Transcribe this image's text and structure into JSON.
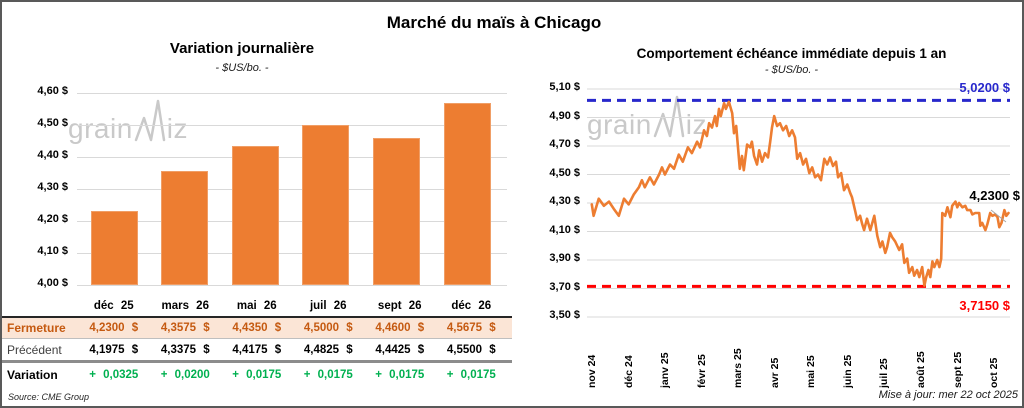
{
  "page": {
    "title": "Marché du maïs à Chicago",
    "source": "Source: CME Group",
    "updated": "Mise à jour: mer 22 oct 2025",
    "watermark": {
      "name": "grainwiz",
      "pre": "grain",
      "post": "iz"
    }
  },
  "colors": {
    "orange": "#ED7D31",
    "peach_row_bg": "#FBE5D6",
    "close_text": "#C55A11",
    "variation_green": "#00B050",
    "ref_blue": "#2828CC",
    "ref_red": "#FF0000",
    "gridline": "#D9D9D9",
    "watermark_gray": "#C9C9C9"
  },
  "chart_data": [
    {
      "type": "bar",
      "title": "Variation journalière",
      "subtitle": "- $US/bo. -",
      "categories": [
        "déc 25",
        "mars 26",
        "mai 26",
        "juil 26",
        "sept 26",
        "déc 26"
      ],
      "values": [
        4.23,
        4.3575,
        4.435,
        4.5,
        4.46,
        4.5675
      ],
      "ylim": [
        4.0,
        4.6
      ],
      "yticks": [
        "4,00 $",
        "4,10 $",
        "4,20 $",
        "4,30 $",
        "4,40 $",
        "4,50 $",
        "4,60 $"
      ],
      "grid": true,
      "legend": "none",
      "bar_color": "#ED7D31"
    },
    {
      "type": "line",
      "title": "Comportement échéance immédiate depuis 1 an",
      "subtitle": "- $US/bo. -",
      "x_categories": [
        "nov 24",
        "déc 24",
        "janv 25",
        "févr 25",
        "mars 25",
        "avr 25",
        "mai 25",
        "juin 25",
        "juil 25",
        "août 25",
        "sept 25",
        "oct 25"
      ],
      "ylim": [
        3.5,
        5.1
      ],
      "yticks": [
        "3,50 $",
        "3,70 $",
        "3,90 $",
        "4,10 $",
        "4,30 $",
        "4,50 $",
        "4,70 $",
        "4,90 $",
        "5,10 $"
      ],
      "grid": true,
      "legend": "none",
      "line_color": "#ED7D31",
      "ref_lines": [
        {
          "value": 5.02,
          "label": "5,0200 $",
          "color": "#2828CC",
          "style": "dashed"
        },
        {
          "value": 3.715,
          "label": "3,7150 $",
          "color": "#FF0000",
          "style": "dashed"
        }
      ],
      "last_value_label": "4,2300 $",
      "points": [
        [
          0.0,
          4.29
        ],
        [
          0.05,
          4.21
        ],
        [
          0.19,
          4.33
        ],
        [
          0.33,
          4.28
        ],
        [
          0.47,
          4.31
        ],
        [
          0.6,
          4.26
        ],
        [
          0.74,
          4.21
        ],
        [
          0.88,
          4.33
        ],
        [
          1.01,
          4.29
        ],
        [
          1.15,
          4.36
        ],
        [
          1.29,
          4.41
        ],
        [
          1.37,
          4.46
        ],
        [
          1.45,
          4.41
        ],
        [
          1.59,
          4.48
        ],
        [
          1.7,
          4.43
        ],
        [
          1.84,
          4.5
        ],
        [
          1.92,
          4.55
        ],
        [
          2.0,
          4.5
        ],
        [
          2.14,
          4.57
        ],
        [
          2.25,
          4.54
        ],
        [
          2.38,
          4.64
        ],
        [
          2.49,
          4.59
        ],
        [
          2.63,
          4.69
        ],
        [
          2.74,
          4.65
        ],
        [
          2.88,
          4.73
        ],
        [
          2.96,
          4.69
        ],
        [
          3.07,
          4.81
        ],
        [
          3.15,
          4.77
        ],
        [
          3.21,
          4.86
        ],
        [
          3.29,
          4.83
        ],
        [
          3.37,
          4.91
        ],
        [
          3.42,
          4.84
        ],
        [
          3.48,
          4.96
        ],
        [
          3.53,
          4.91
        ],
        [
          3.62,
          5.0
        ],
        [
          3.67,
          4.96
        ],
        [
          3.75,
          5.01
        ],
        [
          3.84,
          4.93
        ],
        [
          3.89,
          4.79
        ],
        [
          3.95,
          4.84
        ],
        [
          4.0,
          4.69
        ],
        [
          4.05,
          4.54
        ],
        [
          4.11,
          4.63
        ],
        [
          4.16,
          4.53
        ],
        [
          4.25,
          4.71
        ],
        [
          4.33,
          4.69
        ],
        [
          4.38,
          4.73
        ],
        [
          4.44,
          4.63
        ],
        [
          4.52,
          4.57
        ],
        [
          4.58,
          4.67
        ],
        [
          4.66,
          4.59
        ],
        [
          4.74,
          4.65
        ],
        [
          4.82,
          4.62
        ],
        [
          4.88,
          4.73
        ],
        [
          4.93,
          4.83
        ],
        [
          4.99,
          4.91
        ],
        [
          5.07,
          4.84
        ],
        [
          5.15,
          4.86
        ],
        [
          5.23,
          4.81
        ],
        [
          5.32,
          4.84
        ],
        [
          5.4,
          4.77
        ],
        [
          5.48,
          4.81
        ],
        [
          5.56,
          4.76
        ],
        [
          5.62,
          4.61
        ],
        [
          5.7,
          4.65
        ],
        [
          5.78,
          4.57
        ],
        [
          5.86,
          4.61
        ],
        [
          5.95,
          4.51
        ],
        [
          6.03,
          4.55
        ],
        [
          6.11,
          4.48
        ],
        [
          6.19,
          4.5
        ],
        [
          6.27,
          4.46
        ],
        [
          6.36,
          4.61
        ],
        [
          6.44,
          4.57
        ],
        [
          6.52,
          4.62
        ],
        [
          6.6,
          4.56
        ],
        [
          6.68,
          4.59
        ],
        [
          6.74,
          4.48
        ],
        [
          6.82,
          4.51
        ],
        [
          6.9,
          4.39
        ],
        [
          6.99,
          4.43
        ],
        [
          7.07,
          4.37
        ],
        [
          7.12,
          4.34
        ],
        [
          7.21,
          4.24
        ],
        [
          7.26,
          4.18
        ],
        [
          7.34,
          4.21
        ],
        [
          7.4,
          4.15
        ],
        [
          7.45,
          4.11
        ],
        [
          7.53,
          4.19
        ],
        [
          7.62,
          4.11
        ],
        [
          7.73,
          4.21
        ],
        [
          7.81,
          4.07
        ],
        [
          7.89,
          3.99
        ],
        [
          7.95,
          4.03
        ],
        [
          8.03,
          3.95
        ],
        [
          8.08,
          3.99
        ],
        [
          8.16,
          4.09
        ],
        [
          8.22,
          4.06
        ],
        [
          8.3,
          4.03
        ],
        [
          8.41,
          3.97
        ],
        [
          8.49,
          4.01
        ],
        [
          8.55,
          3.88
        ],
        [
          8.63,
          3.91
        ],
        [
          8.68,
          3.81
        ],
        [
          8.77,
          3.85
        ],
        [
          8.82,
          3.79
        ],
        [
          8.9,
          3.83
        ],
        [
          8.96,
          3.78
        ],
        [
          9.04,
          3.85
        ],
        [
          9.1,
          3.72
        ],
        [
          9.15,
          3.78
        ],
        [
          9.21,
          3.83
        ],
        [
          9.26,
          3.78
        ],
        [
          9.32,
          3.89
        ],
        [
          9.37,
          3.85
        ],
        [
          9.45,
          3.9
        ],
        [
          9.51,
          3.85
        ],
        [
          9.56,
          3.91
        ],
        [
          9.59,
          4.23
        ],
        [
          9.67,
          4.21
        ],
        [
          9.73,
          4.27
        ],
        [
          9.81,
          4.2
        ],
        [
          9.86,
          4.28
        ],
        [
          9.95,
          4.31
        ],
        [
          10.0,
          4.27
        ],
        [
          10.05,
          4.3
        ],
        [
          10.14,
          4.27
        ],
        [
          10.22,
          4.28
        ],
        [
          10.27,
          4.25
        ],
        [
          10.36,
          4.25
        ],
        [
          10.41,
          4.22
        ],
        [
          10.49,
          4.23
        ],
        [
          10.6,
          4.23
        ],
        [
          10.63,
          4.14
        ],
        [
          10.68,
          4.16
        ],
        [
          10.77,
          4.11
        ],
        [
          10.82,
          4.15
        ],
        [
          10.9,
          4.23
        ],
        [
          10.96,
          4.21
        ],
        [
          11.04,
          4.22
        ],
        [
          11.1,
          4.2
        ],
        [
          11.15,
          4.13
        ],
        [
          11.21,
          4.16
        ],
        [
          11.29,
          4.25
        ],
        [
          11.34,
          4.21
        ],
        [
          11.4,
          4.23
        ]
      ]
    }
  ],
  "table": {
    "columns": [
      "",
      "déc 25",
      "mars 26",
      "mai 26",
      "juil 26",
      "sept 26",
      "déc 26"
    ],
    "rows": [
      {
        "label": "Fermeture",
        "style": "close",
        "values": [
          "4,2300 $",
          "4,3575 $",
          "4,4350 $",
          "4,5000 $",
          "4,4600 $",
          "4,5675 $"
        ]
      },
      {
        "label": "Précédent",
        "style": "previous",
        "values": [
          "4,1975 $",
          "4,3375 $",
          "4,4175 $",
          "4,4825 $",
          "4,4425 $",
          "4,5500 $"
        ]
      },
      {
        "label": "Variation",
        "style": "variation",
        "values": [
          "+ 0,0325",
          "+ 0,0200",
          "+ 0,0175",
          "+ 0,0175",
          "+ 0,0175",
          "+ 0,0175"
        ]
      }
    ]
  }
}
